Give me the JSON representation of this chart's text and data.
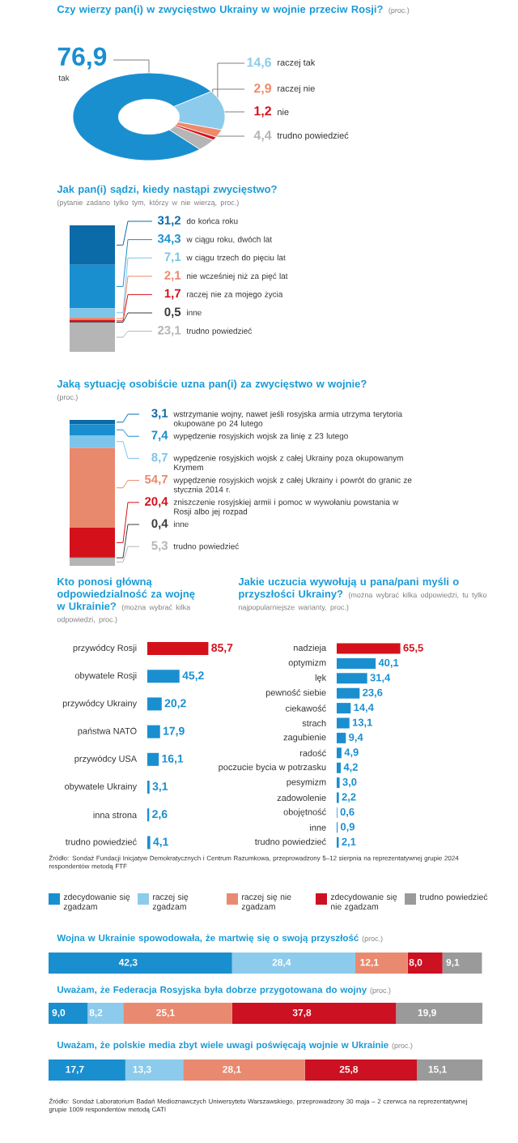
{
  "chart_data": [
    {
      "type": "donut",
      "title": "Czy wierzy pan(i) w zwycięstwo Ukrainy w wojnie przeciw Rosji?",
      "subtitle": "(proc.)",
      "categories": [
        "tak",
        "raczej tak",
        "raczej nie",
        "nie",
        "trudno powiedzieć"
      ],
      "values": [
        76.9,
        14.6,
        2.9,
        1.2,
        4.4
      ],
      "value_labels": [
        "76,9",
        "14,6",
        "2,9",
        "1,2",
        "4,4"
      ],
      "colors": [
        "#1a8fd0",
        "#8ccbeb",
        "#ee8a6c",
        "#d4111b",
        "#b5b5b5"
      ]
    },
    {
      "type": "bar",
      "stacked": true,
      "title": "Jak pan(i) sądzi, kiedy nastąpi zwycięstwo?",
      "subtitle": "(pytanie zadano tylko tym, którzy w nie wierzą, proc.)",
      "categories": [
        null
      ],
      "series": [
        {
          "name": "trudno powiedzieć",
          "color": "#b5b5b5",
          "values": [
            23.1
          ],
          "value_labels": [
            "23,1"
          ]
        },
        {
          "name": "inne",
          "color": "#3c3c3c",
          "values": [
            0.5
          ],
          "value_labels": [
            "0,5"
          ]
        },
        {
          "name": "raczej nie za mojego życia",
          "color": "#d4111b",
          "values": [
            1.7
          ],
          "value_labels": [
            "1,7"
          ]
        },
        {
          "name": "nie wcześniej niż za pięć lat",
          "color": "#ee8a6c",
          "values": [
            2.1
          ],
          "value_labels": [
            "2,1"
          ]
        },
        {
          "name": "w ciągu trzech do pięciu lat",
          "color": "#7cc4ea",
          "values": [
            7.1
          ],
          "value_labels": [
            "7,1"
          ]
        },
        {
          "name": "w ciągu roku, dwóch lat",
          "color": "#1a8fd0",
          "values": [
            34.3
          ],
          "value_labels": [
            "34,3"
          ]
        },
        {
          "name": "do końca roku",
          "color": "#0b6aa8",
          "values": [
            31.2
          ],
          "value_labels": [
            "31,2"
          ]
        }
      ]
    },
    {
      "type": "bar",
      "stacked": true,
      "title": "Jaką sytuację osobiście uzna pan(i) za zwycięstwo w wojnie?",
      "subtitle": "(proc.)",
      "categories": [
        null
      ],
      "series": [
        {
          "name": "trudno powiedzieć",
          "color": "#b5b5b5",
          "values": [
            5.3
          ],
          "value_labels": [
            "5,3"
          ]
        },
        {
          "name": "inne",
          "color": "#3c3c3c",
          "values": [
            0.4
          ],
          "value_labels": [
            "0,4"
          ]
        },
        {
          "name": "zniszczenie rosyjskiej armii i pomoc w wywołaniu powstania w Rosji albo jej rozpad",
          "color": "#d4111b",
          "values": [
            20.4
          ],
          "value_labels": [
            "20,4"
          ]
        },
        {
          "name": "wypędzenie rosyjskich wojsk z całej Ukrainy i powrót do granic ze stycznia 2014 r.",
          "color": "#e8886c",
          "values": [
            54.7
          ],
          "value_labels": [
            "54,7"
          ]
        },
        {
          "name": "wypędzenie rosyjskich wojsk z całej Ukrainy poza okupowanym Krymem",
          "color": "#7cc4ea",
          "values": [
            8.7
          ],
          "value_labels": [
            "8,7"
          ]
        },
        {
          "name": "wypędzenie rosyjskich wojsk za linię z 23 lutego",
          "color": "#1a8fd0",
          "values": [
            7.4
          ],
          "value_labels": [
            "7,4"
          ]
        },
        {
          "name": "wstrzymanie wojny, nawet jeśli rosyjska armia utrzyma terytoria okupowane po 24 lutego",
          "color": "#0b6aa8",
          "values": [
            3.1
          ],
          "value_labels": [
            "3,1"
          ]
        }
      ]
    },
    {
      "type": "bar",
      "orientation": "horizontal",
      "title": "Kto ponosi główną odpowiedzialność za wojnę w Ukrainie?",
      "subtitle": "(można wybrać kilka odpowiedzi, proc.)",
      "categories": [
        "przywódcy Rosji",
        "obywatele Rosji",
        "przywódcy Ukrainy",
        "państwa NATO",
        "przywódcy USA",
        "obywatele Ukrainy",
        "inna strona",
        "trudno powiedzieć"
      ],
      "values": [
        85.7,
        45.2,
        20.2,
        17.9,
        16.1,
        3.1,
        2.6,
        4.1
      ],
      "value_labels": [
        "85,7",
        "45,2",
        "20,2",
        "17,9",
        "16,1",
        "3,1",
        "2,6",
        "4,1"
      ],
      "colors": [
        "#d4111b",
        "#1a8fd0",
        "#1a8fd0",
        "#1a8fd0",
        "#1a8fd0",
        "#1a8fd0",
        "#1a8fd0",
        "#1a8fd0"
      ],
      "annotations": [
        "Źródło: Sondaż Fundacji Inicjatyw Demokratycznych i Centrum Razumkowa, przeprowadzony 5–12 sierpnia na reprezentatywnej grupie 2024 respondentów metodą FTF"
      ]
    },
    {
      "type": "bar",
      "orientation": "horizontal",
      "title": "Jakie uczucia wywołują u pana/pani myśli o przyszłości Ukrainy?",
      "subtitle": "(można wybrać kilka odpowiedzi, tu tylko najpopularniejsze warianty, proc.)",
      "categories": [
        "nadzieja",
        "optymizm",
        "lęk",
        "pewność siebie",
        "ciekawość",
        "strach",
        "zagubienie",
        "radość",
        "poczucie bycia w potrzasku",
        "pesymizm",
        "zadowolenie",
        "obojętność",
        "inne",
        "trudno powiedzieć"
      ],
      "values": [
        65.5,
        40.1,
        31.4,
        23.6,
        14.4,
        13.1,
        9.4,
        4.9,
        4.2,
        3.0,
        2.2,
        0.6,
        0.9,
        2.1
      ],
      "value_labels": [
        "65,5",
        "40,1",
        "31,4",
        "23,6",
        "14,4",
        "13,1",
        "9,4",
        "4,9",
        "4,2",
        "3,0",
        "2,2",
        "0,6",
        "0,9",
        "2,1"
      ],
      "colors": [
        "#d4111b",
        "#1a8fd0",
        "#1a8fd0",
        "#1a8fd0",
        "#1a8fd0",
        "#1a8fd0",
        "#1a8fd0",
        "#1a8fd0",
        "#1a8fd0",
        "#1a8fd0",
        "#1a8fd0",
        "#1a8fd0",
        "#1a8fd0",
        "#1a8fd0"
      ]
    },
    {
      "type": "bar",
      "orientation": "horizontal",
      "stacked": true,
      "legend": "top",
      "title": "Wojna w Ukrainie spowodowała, że martwię się o swoją przyszłość",
      "subtitle": "(proc.)",
      "categories": [
        null
      ],
      "series": [
        {
          "name": "zdecydowanie się zgadzam",
          "color": "#1a8fd0",
          "values": [
            42.3
          ],
          "value_labels": [
            "42,3"
          ]
        },
        {
          "name": "raczej się zgadzam",
          "color": "#8ccbeb",
          "values": [
            28.4
          ],
          "value_labels": [
            "28,4"
          ]
        },
        {
          "name": "raczej się nie zgadzam",
          "color": "#e98a70",
          "values": [
            12.1
          ],
          "value_labels": [
            "12,1"
          ]
        },
        {
          "name": "zdecydowanie się nie zgadzam",
          "color": "#cc1122",
          "values": [
            8.0
          ],
          "value_labels": [
            "8,0"
          ]
        },
        {
          "name": "trudno powiedzieć",
          "color": "#9a9a9a",
          "values": [
            9.1
          ],
          "value_labels": [
            "9,1"
          ]
        }
      ]
    },
    {
      "type": "bar",
      "orientation": "horizontal",
      "stacked": true,
      "title": "Uważam, że Federacja Rosyjska była dobrze przygotowana do wojny",
      "subtitle": "(proc.)",
      "categories": [
        null
      ],
      "series": [
        {
          "color": "#1a8fd0",
          "values": [
            9.0
          ],
          "value_labels": [
            "9,0"
          ]
        },
        {
          "color": "#8ccbeb",
          "values": [
            8.2
          ],
          "value_labels": [
            "8,2"
          ]
        },
        {
          "color": "#e98a70",
          "values": [
            25.1
          ],
          "value_labels": [
            "25,1"
          ]
        },
        {
          "color": "#cc1122",
          "values": [
            37.8
          ],
          "value_labels": [
            "37,8"
          ]
        },
        {
          "color": "#9a9a9a",
          "values": [
            19.9
          ],
          "value_labels": [
            "19,9"
          ]
        }
      ]
    },
    {
      "type": "bar",
      "orientation": "horizontal",
      "stacked": true,
      "title": "Uważam, że polskie media zbyt wiele uwagi poświęcają wojnie w Ukrainie",
      "subtitle": "(proc.)",
      "categories": [
        null
      ],
      "series": [
        {
          "color": "#1a8fd0",
          "values": [
            17.7
          ],
          "value_labels": [
            "17,7"
          ]
        },
        {
          "color": "#8ccbeb",
          "values": [
            13.3
          ],
          "value_labels": [
            "13,3"
          ]
        },
        {
          "color": "#e98a70",
          "values": [
            28.1
          ],
          "value_labels": [
            "28,1"
          ]
        },
        {
          "color": "#cc1122",
          "values": [
            25.8
          ],
          "value_labels": [
            "25,8"
          ]
        },
        {
          "color": "#9a9a9a",
          "values": [
            15.1
          ],
          "value_labels": [
            "15,1"
          ]
        }
      ],
      "annotations": [
        "Źródło: Sondaż Laboratorium Badań Medioznawczych Uniwersytetu Warszawskiego, przeprowadzony 30 maja – 2 czerwca na reprezentatywnej grupie 1009 respondentów metodą CATI"
      ]
    }
  ]
}
